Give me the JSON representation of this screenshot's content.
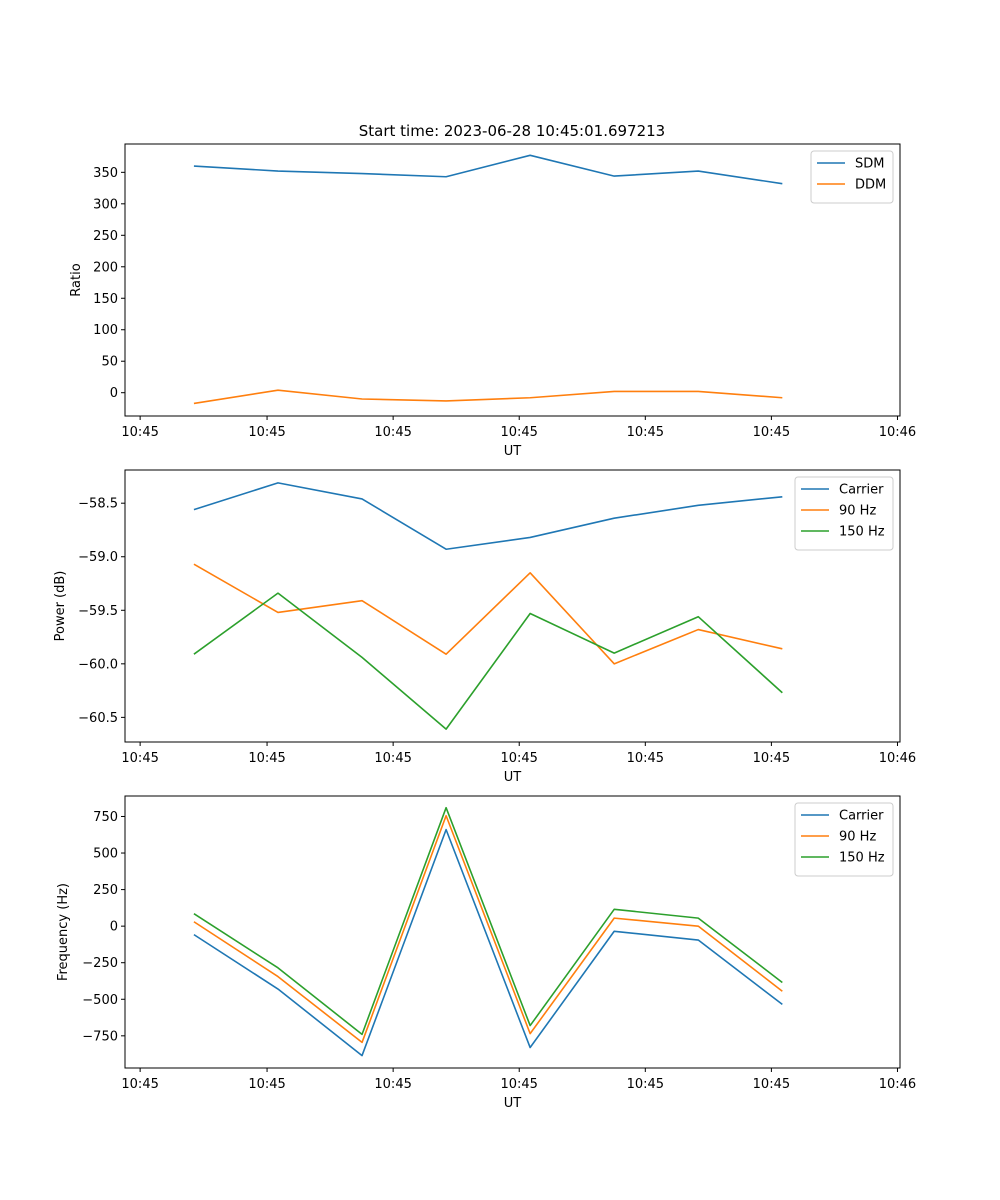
{
  "figure": {
    "title": "Start time: 2023-06-28 10:45:01.697213"
  },
  "colors": {
    "blue": "#1f77b4",
    "orange": "#ff7f0e",
    "green": "#2ca02c"
  },
  "chart_data": [
    {
      "type": "line",
      "title": "Start time: 2023-06-28 10:45:01.697213",
      "xlabel": "UT",
      "ylabel": "Ratio",
      "x": [
        1,
        2,
        3,
        4,
        5,
        6,
        7,
        8
      ],
      "xlim": [
        0.18,
        9.4
      ],
      "ylim": [
        -37,
        395
      ],
      "xticks": [
        0.36,
        1.87,
        3.37,
        4.87,
        6.37,
        7.87,
        9.37
      ],
      "xticklabels": [
        "10:45",
        "10:45",
        "10:45",
        "10:45",
        "10:45",
        "10:45",
        "10:46"
      ],
      "yticks": [
        0,
        50,
        100,
        150,
        200,
        250,
        300,
        350
      ],
      "yticklabels": [
        "0",
        "50",
        "100",
        "150",
        "200",
        "250",
        "300",
        "350"
      ],
      "grid": false,
      "legend": "top-right",
      "series": [
        {
          "name": "SDM",
          "color": "#1f77b4",
          "values": [
            360,
            352,
            348,
            343,
            377,
            344,
            352,
            332
          ]
        },
        {
          "name": "DDM",
          "color": "#ff7f0e",
          "values": [
            -17,
            4,
            -10,
            -13,
            -8,
            2,
            2,
            -8
          ]
        }
      ]
    },
    {
      "type": "line",
      "title": "",
      "xlabel": "UT",
      "ylabel": "Power (dB)",
      "x": [
        1,
        2,
        3,
        4,
        5,
        6,
        7,
        8
      ],
      "xlim": [
        0.18,
        9.4
      ],
      "ylim": [
        -60.73,
        -58.19
      ],
      "xticks": [
        0.36,
        1.87,
        3.37,
        4.87,
        6.37,
        7.87,
        9.37
      ],
      "xticklabels": [
        "10:45",
        "10:45",
        "10:45",
        "10:45",
        "10:45",
        "10:45",
        "10:46"
      ],
      "yticks": [
        -60.5,
        -60.0,
        -59.5,
        -59.0,
        -58.5
      ],
      "yticklabels": [
        "−60.5",
        "−60.0",
        "−59.5",
        "−59.0",
        "−58.5"
      ],
      "grid": false,
      "legend": "top-right",
      "series": [
        {
          "name": "Carrier",
          "color": "#1f77b4",
          "values": [
            -58.56,
            -58.31,
            -58.46,
            -58.93,
            -58.82,
            -58.64,
            -58.52,
            -58.44
          ]
        },
        {
          "name": "90 Hz",
          "color": "#ff7f0e",
          "values": [
            -59.07,
            -59.52,
            -59.41,
            -59.91,
            -59.15,
            -60.0,
            -59.68,
            -59.86
          ]
        },
        {
          "name": "150 Hz",
          "color": "#2ca02c",
          "values": [
            -59.91,
            -59.34,
            -59.94,
            -60.61,
            -59.53,
            -59.9,
            -59.56,
            -60.27
          ]
        }
      ]
    },
    {
      "type": "line",
      "title": "",
      "xlabel": "UT",
      "ylabel": "Frequency (Hz)",
      "x": [
        1,
        2,
        3,
        4,
        5,
        6,
        7,
        8
      ],
      "xlim": [
        0.18,
        9.4
      ],
      "ylim": [
        -970,
        890
      ],
      "xticks": [
        0.36,
        1.87,
        3.37,
        4.87,
        6.37,
        7.87,
        9.37
      ],
      "xticklabels": [
        "10:45",
        "10:45",
        "10:45",
        "10:45",
        "10:45",
        "10:45",
        "10:46"
      ],
      "yticks": [
        -750,
        -500,
        -250,
        0,
        250,
        500,
        750
      ],
      "yticklabels": [
        "−750",
        "−500",
        "−250",
        "0",
        "250",
        "500",
        "750"
      ],
      "grid": false,
      "legend": "top-right",
      "series": [
        {
          "name": "Carrier",
          "color": "#1f77b4",
          "values": [
            -58,
            -430,
            -885,
            660,
            -830,
            -35,
            -95,
            -535
          ]
        },
        {
          "name": "90 Hz",
          "color": "#ff7f0e",
          "values": [
            30,
            -345,
            -795,
            755,
            -735,
            55,
            0,
            -445
          ]
        },
        {
          "name": "150 Hz",
          "color": "#2ca02c",
          "values": [
            85,
            -285,
            -740,
            810,
            -680,
            115,
            55,
            -385
          ]
        }
      ]
    }
  ]
}
